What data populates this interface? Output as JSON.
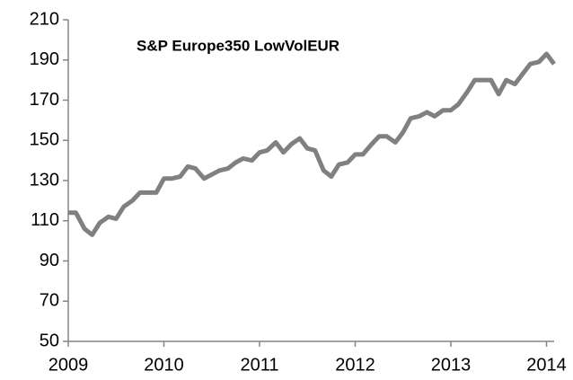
{
  "chart_data": {
    "type": "line",
    "title": "S&P Europe350 LowVolEUR",
    "x": [
      2009.0,
      2009.08,
      2009.17,
      2009.25,
      2009.33,
      2009.42,
      2009.5,
      2009.58,
      2009.67,
      2009.75,
      2009.83,
      2009.92,
      2010.0,
      2010.08,
      2010.17,
      2010.25,
      2010.33,
      2010.42,
      2010.5,
      2010.58,
      2010.67,
      2010.75,
      2010.83,
      2010.92,
      2011.0,
      2011.08,
      2011.17,
      2011.25,
      2011.33,
      2011.42,
      2011.5,
      2011.58,
      2011.67,
      2011.75,
      2011.83,
      2011.92,
      2012.0,
      2012.08,
      2012.17,
      2012.25,
      2012.33,
      2012.42,
      2012.5,
      2012.58,
      2012.67,
      2012.75,
      2012.83,
      2012.92,
      2013.0,
      2013.08,
      2013.17,
      2013.25,
      2013.33,
      2013.42,
      2013.5,
      2013.58,
      2013.67,
      2013.75,
      2013.83,
      2013.92,
      2014.0,
      2014.08
    ],
    "series": [
      {
        "name": "S&P Europe350 LowVolEUR",
        "color": "#808080",
        "values": [
          114,
          114,
          106,
          103,
          109,
          112,
          111,
          117,
          120,
          124,
          124,
          124,
          131,
          131,
          132,
          137,
          136,
          131,
          133,
          135,
          136,
          139,
          141,
          140,
          144,
          145,
          149,
          144,
          148,
          151,
          146,
          145,
          135,
          132,
          138,
          139,
          143,
          143,
          148,
          152,
          152,
          149,
          154,
          161,
          162,
          164,
          162,
          165,
          165,
          168,
          174,
          180,
          180,
          180,
          173,
          180,
          178,
          183,
          188,
          189,
          193,
          188
        ]
      }
    ],
    "xlim": [
      2009,
      2014.08
    ],
    "xticks": [
      2009,
      2010,
      2011,
      2012,
      2013,
      2014
    ],
    "ylim": [
      50,
      210
    ],
    "yticks": [
      50,
      70,
      90,
      110,
      130,
      150,
      170,
      190,
      210
    ],
    "grid": false
  }
}
